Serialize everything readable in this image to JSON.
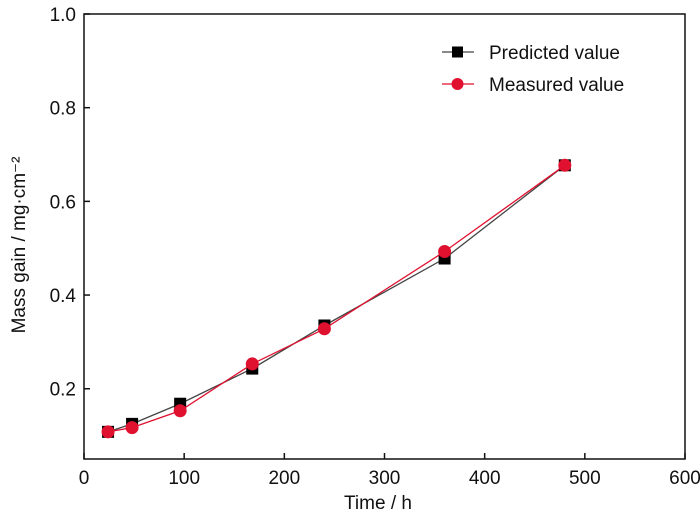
{
  "chart_data": {
    "type": "line",
    "title": "",
    "xlabel": "Time / h",
    "ylabel": "Mass gain / mg·cm⁻²",
    "xlim": [
      0,
      600
    ],
    "ylim": [
      0.05,
      1.0
    ],
    "xticks": [
      0,
      100,
      200,
      300,
      400,
      500,
      600
    ],
    "xtick_labels": [
      "0",
      "100",
      "200",
      "300",
      "400",
      "500",
      "600"
    ],
    "yticks": [
      0.2,
      0.4,
      0.6,
      0.8,
      1.0
    ],
    "ytick_labels": [
      "0.2",
      "0.4",
      "0.6",
      "0.8",
      "1.0"
    ],
    "grid": false,
    "legend_position": "top-right",
    "x": [
      24,
      48,
      96,
      168,
      240,
      360,
      480
    ],
    "series": [
      {
        "name": "Predicted value",
        "marker": "square",
        "color": "#000000",
        "line_color": "#444444",
        "values": [
          0.108,
          0.125,
          0.168,
          0.243,
          0.335,
          0.478,
          0.677
        ]
      },
      {
        "name": "Measured value",
        "marker": "circle",
        "color": "#e0102f",
        "line_color": "#e0102f",
        "values": [
          0.108,
          0.117,
          0.153,
          0.253,
          0.328,
          0.493,
          0.677
        ]
      }
    ]
  }
}
